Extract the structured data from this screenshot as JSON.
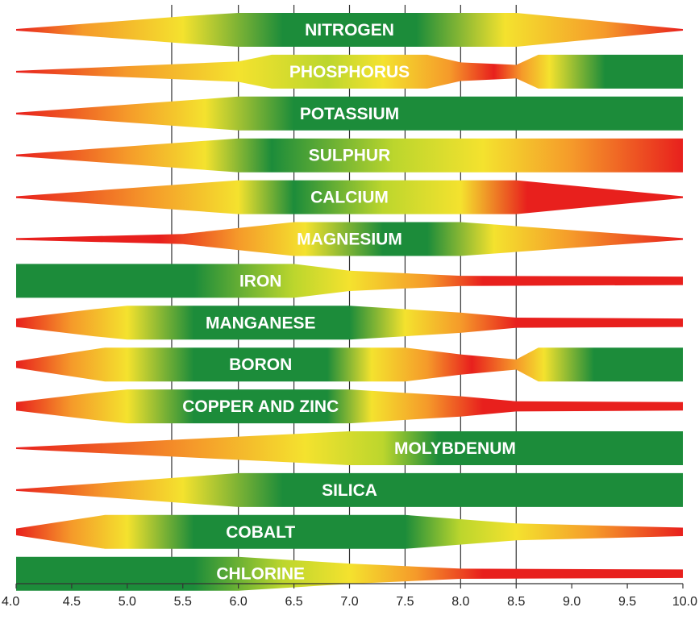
{
  "chart_data": {
    "type": "band",
    "xlim": [
      4.0,
      10.0
    ],
    "x_ticks": [
      "4.0",
      "4.5",
      "5.0",
      "5.5",
      "6.0",
      "6.5",
      "7.0",
      "7.5",
      "8.0",
      "8.5",
      "9.0",
      "9.5",
      "10.0"
    ],
    "x_tick_values": [
      4.0,
      4.5,
      5.0,
      5.5,
      6.0,
      6.5,
      7.0,
      7.5,
      8.0,
      8.5,
      9.0,
      9.5,
      10.0
    ],
    "gridlines": [
      5.4,
      6.0,
      6.5,
      7.0,
      7.5,
      8.0,
      8.5
    ],
    "colors": {
      "red": "#e8201d",
      "orange": "#f59a2a",
      "yellow": "#f4e22e",
      "lime": "#bcd62d",
      "green": "#1c8c3a"
    },
    "series": [
      {
        "name": "NITROGEN",
        "label_x": 7.0,
        "width": [
          [
            4.0,
            0.05
          ],
          [
            5.5,
            0.8
          ],
          [
            6.0,
            1.0
          ],
          [
            8.5,
            1.0
          ],
          [
            10.0,
            0.05
          ]
        ],
        "color": [
          [
            4.0,
            "red"
          ],
          [
            4.6,
            "orange"
          ],
          [
            5.5,
            "yellow"
          ],
          [
            6.4,
            "green"
          ],
          [
            7.6,
            "green"
          ],
          [
            8.4,
            "yellow"
          ],
          [
            9.3,
            "orange"
          ],
          [
            10.0,
            "red"
          ]
        ]
      },
      {
        "name": "PHOSPHORUS",
        "label_x": 7.0,
        "width": [
          [
            4.0,
            0.05
          ],
          [
            6.0,
            0.6
          ],
          [
            6.3,
            1.0
          ],
          [
            7.7,
            1.0
          ],
          [
            8.0,
            0.55
          ],
          [
            8.5,
            0.4
          ],
          [
            8.7,
            1.0
          ],
          [
            10.0,
            1.0
          ]
        ],
        "color": [
          [
            4.0,
            "red"
          ],
          [
            5.0,
            "orange"
          ],
          [
            6.0,
            "yellow"
          ],
          [
            6.8,
            "lime"
          ],
          [
            7.3,
            "yellow"
          ],
          [
            7.9,
            "orange"
          ],
          [
            8.3,
            "red"
          ],
          [
            8.55,
            "orange"
          ],
          [
            8.8,
            "yellow"
          ],
          [
            9.3,
            "green"
          ],
          [
            10.0,
            "green"
          ]
        ]
      },
      {
        "name": "POTASSIUM",
        "label_x": 7.0,
        "width": [
          [
            4.0,
            0.05
          ],
          [
            6.0,
            1.0
          ],
          [
            10.0,
            1.0
          ]
        ],
        "color": [
          [
            4.0,
            "red"
          ],
          [
            5.0,
            "orange"
          ],
          [
            5.7,
            "yellow"
          ],
          [
            6.5,
            "green"
          ],
          [
            10.0,
            "green"
          ]
        ]
      },
      {
        "name": "SULPHUR",
        "label_x": 7.0,
        "width": [
          [
            4.0,
            0.05
          ],
          [
            6.0,
            1.0
          ],
          [
            10.0,
            1.0
          ]
        ],
        "color": [
          [
            4.0,
            "red"
          ],
          [
            5.0,
            "orange"
          ],
          [
            5.7,
            "yellow"
          ],
          [
            6.3,
            "green"
          ],
          [
            7.4,
            "lime"
          ],
          [
            8.2,
            "yellow"
          ],
          [
            9.0,
            "orange"
          ],
          [
            10.0,
            "red"
          ]
        ]
      },
      {
        "name": "CALCIUM",
        "label_x": 7.0,
        "width": [
          [
            4.0,
            0.05
          ],
          [
            6.0,
            1.0
          ],
          [
            8.5,
            1.0
          ],
          [
            10.0,
            0.05
          ]
        ],
        "color": [
          [
            4.0,
            "red"
          ],
          [
            5.2,
            "orange"
          ],
          [
            6.0,
            "yellow"
          ],
          [
            6.5,
            "green"
          ],
          [
            7.3,
            "lime"
          ],
          [
            8.0,
            "yellow"
          ],
          [
            8.6,
            "red"
          ],
          [
            10.0,
            "red"
          ]
        ]
      },
      {
        "name": "MAGNESIUM",
        "label_x": 7.0,
        "width": [
          [
            4.0,
            0.05
          ],
          [
            5.5,
            0.3
          ],
          [
            6.5,
            1.0
          ],
          [
            8.0,
            1.0
          ],
          [
            10.0,
            0.05
          ]
        ],
        "color": [
          [
            4.0,
            "red"
          ],
          [
            5.3,
            "red"
          ],
          [
            6.0,
            "orange"
          ],
          [
            6.6,
            "yellow"
          ],
          [
            7.3,
            "green"
          ],
          [
            7.7,
            "green"
          ],
          [
            8.3,
            "yellow"
          ],
          [
            9.0,
            "orange"
          ],
          [
            10.0,
            "red"
          ]
        ]
      },
      {
        "name": "IRON",
        "label_x": 6.2,
        "width": [
          [
            4.0,
            1.0
          ],
          [
            5.5,
            1.0
          ],
          [
            6.5,
            1.0
          ],
          [
            7.0,
            0.6
          ],
          [
            8.0,
            0.3
          ],
          [
            10.0,
            0.25
          ]
        ],
        "color": [
          [
            4.0,
            "green"
          ],
          [
            5.6,
            "green"
          ],
          [
            6.5,
            "lime"
          ],
          [
            7.0,
            "yellow"
          ],
          [
            7.7,
            "orange"
          ],
          [
            8.2,
            "red"
          ],
          [
            10.0,
            "red"
          ]
        ]
      },
      {
        "name": "MANGANESE",
        "label_x": 6.2,
        "width": [
          [
            4.0,
            0.25
          ],
          [
            4.7,
            0.8
          ],
          [
            5.0,
            1.0
          ],
          [
            7.0,
            1.0
          ],
          [
            8.0,
            0.6
          ],
          [
            8.5,
            0.3
          ],
          [
            10.0,
            0.25
          ]
        ],
        "color": [
          [
            4.0,
            "red"
          ],
          [
            4.5,
            "orange"
          ],
          [
            5.0,
            "yellow"
          ],
          [
            5.6,
            "green"
          ],
          [
            7.0,
            "green"
          ],
          [
            7.5,
            "yellow"
          ],
          [
            8.0,
            "orange"
          ],
          [
            8.5,
            "red"
          ],
          [
            10.0,
            "red"
          ]
        ]
      },
      {
        "name": "BORON",
        "label_x": 6.2,
        "width": [
          [
            4.0,
            0.2
          ],
          [
            4.8,
            1.0
          ],
          [
            7.5,
            1.0
          ],
          [
            8.0,
            0.6
          ],
          [
            8.5,
            0.3
          ],
          [
            8.7,
            1.0
          ],
          [
            10.0,
            1.0
          ]
        ],
        "color": [
          [
            4.0,
            "red"
          ],
          [
            4.5,
            "orange"
          ],
          [
            5.0,
            "yellow"
          ],
          [
            5.6,
            "green"
          ],
          [
            6.8,
            "green"
          ],
          [
            7.2,
            "yellow"
          ],
          [
            7.7,
            "orange"
          ],
          [
            8.1,
            "red"
          ],
          [
            8.5,
            "orange"
          ],
          [
            8.75,
            "yellow"
          ],
          [
            9.2,
            "green"
          ],
          [
            10.0,
            "green"
          ]
        ]
      },
      {
        "name": "COPPER AND ZINC",
        "label_x": 6.2,
        "width": [
          [
            4.0,
            0.25
          ],
          [
            4.7,
            0.8
          ],
          [
            5.0,
            1.0
          ],
          [
            7.0,
            1.0
          ],
          [
            8.0,
            0.6
          ],
          [
            8.5,
            0.3
          ],
          [
            10.0,
            0.25
          ]
        ],
        "color": [
          [
            4.0,
            "red"
          ],
          [
            4.5,
            "orange"
          ],
          [
            5.0,
            "yellow"
          ],
          [
            5.6,
            "green"
          ],
          [
            6.8,
            "green"
          ],
          [
            7.2,
            "yellow"
          ],
          [
            7.7,
            "orange"
          ],
          [
            8.2,
            "red"
          ],
          [
            10.0,
            "red"
          ]
        ]
      },
      {
        "name": "MOLYBDENUM",
        "label_x": 7.95,
        "width": [
          [
            4.0,
            0.05
          ],
          [
            7.0,
            1.0
          ],
          [
            10.0,
            1.0
          ]
        ],
        "color": [
          [
            4.0,
            "red"
          ],
          [
            5.6,
            "orange"
          ],
          [
            6.6,
            "yellow"
          ],
          [
            7.3,
            "lime"
          ],
          [
            7.8,
            "green"
          ],
          [
            10.0,
            "green"
          ]
        ]
      },
      {
        "name": "SILICA",
        "label_x": 7.0,
        "width": [
          [
            4.0,
            0.05
          ],
          [
            6.0,
            1.0
          ],
          [
            10.0,
            1.0
          ]
        ],
        "color": [
          [
            4.0,
            "red"
          ],
          [
            4.8,
            "orange"
          ],
          [
            5.5,
            "yellow"
          ],
          [
            6.4,
            "green"
          ],
          [
            10.0,
            "green"
          ]
        ]
      },
      {
        "name": "COBALT",
        "label_x": 6.2,
        "width": [
          [
            4.0,
            0.2
          ],
          [
            4.8,
            1.0
          ],
          [
            7.5,
            1.0
          ],
          [
            8.5,
            0.5
          ],
          [
            10.0,
            0.25
          ]
        ],
        "color": [
          [
            4.0,
            "red"
          ],
          [
            4.5,
            "orange"
          ],
          [
            5.0,
            "yellow"
          ],
          [
            5.6,
            "green"
          ],
          [
            7.5,
            "green"
          ],
          [
            8.0,
            "lime"
          ],
          [
            8.5,
            "yellow"
          ],
          [
            9.2,
            "orange"
          ],
          [
            10.0,
            "red"
          ]
        ]
      },
      {
        "name": "CHLORINE",
        "label_x": 6.2,
        "width": [
          [
            4.0,
            1.0
          ],
          [
            6.0,
            1.0
          ],
          [
            7.0,
            0.6
          ],
          [
            8.0,
            0.3
          ],
          [
            10.0,
            0.25
          ]
        ],
        "color": [
          [
            4.0,
            "green"
          ],
          [
            5.6,
            "green"
          ],
          [
            6.4,
            "lime"
          ],
          [
            7.0,
            "yellow"
          ],
          [
            7.6,
            "orange"
          ],
          [
            8.2,
            "red"
          ],
          [
            10.0,
            "red"
          ]
        ]
      }
    ]
  }
}
